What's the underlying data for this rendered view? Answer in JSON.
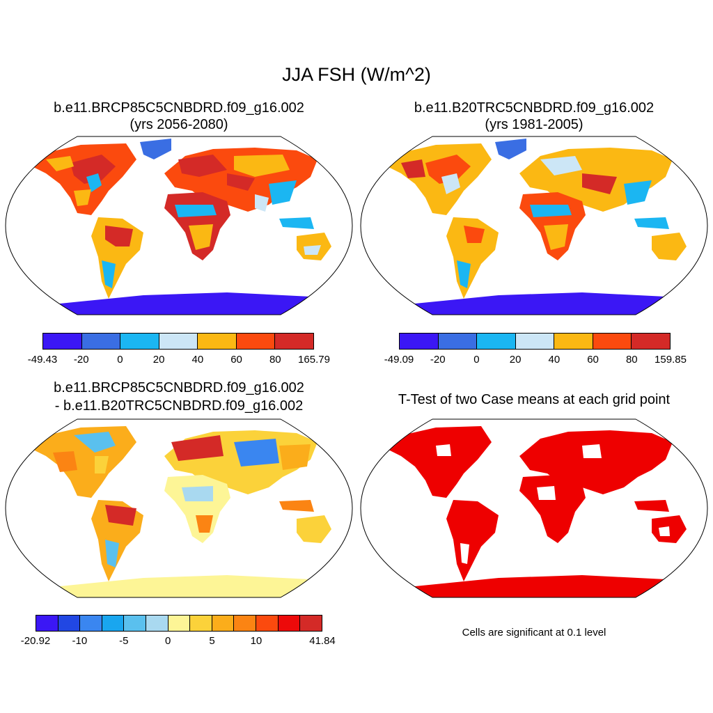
{
  "figure": {
    "title": "JJA FSH (W/m^2)"
  },
  "panels": [
    {
      "title_line1": "b.e11.BRCP85C5CNBDRD.f09_g16.002",
      "title_line2": "(yrs 2056-2080)",
      "colorbar": {
        "colors": [
          "#3b17f5",
          "#3a6ee3",
          "#1bb6f2",
          "#cce6f6",
          "#fbb813",
          "#fb4a0e",
          "#d42a27"
        ],
        "labels": [
          "-49.43",
          "-20",
          "0",
          "20",
          "40",
          "60",
          "80",
          "165.79"
        ]
      }
    },
    {
      "title_line1": "b.e11.B20TRC5CNBDRD.f09_g16.002",
      "title_line2": "(yrs 1981-2005)",
      "colorbar": {
        "colors": [
          "#3b17f5",
          "#3a6ee3",
          "#1bb6f2",
          "#cce6f6",
          "#fbb813",
          "#fb4a0e",
          "#d42a27"
        ],
        "labels": [
          "-49.09",
          "-20",
          "0",
          "20",
          "40",
          "60",
          "80",
          "159.85"
        ]
      }
    },
    {
      "title_line1": "b.e11.BRCP85C5CNBDRD.f09_g16.002",
      "title_line2": "- b.e11.B20TRC5CNBDRD.f09_g16.002",
      "colorbar": {
        "colors": [
          "#3b17f5",
          "#2147e3",
          "#3a86f0",
          "#19a6ef",
          "#5ac0ee",
          "#a9d9f0",
          "#fdf596",
          "#fbd23a",
          "#fbad1b",
          "#fb8413",
          "#fb4a0e",
          "#ed0a0a",
          "#d42a27"
        ],
        "labels": [
          "-20.92",
          "-10",
          "-5",
          "0",
          "5",
          "10",
          "41.84"
        ]
      }
    },
    {
      "title_line1": "T-Test of two Case means at each grid point",
      "note": "Cells are significant at 0.1 level"
    }
  ]
}
